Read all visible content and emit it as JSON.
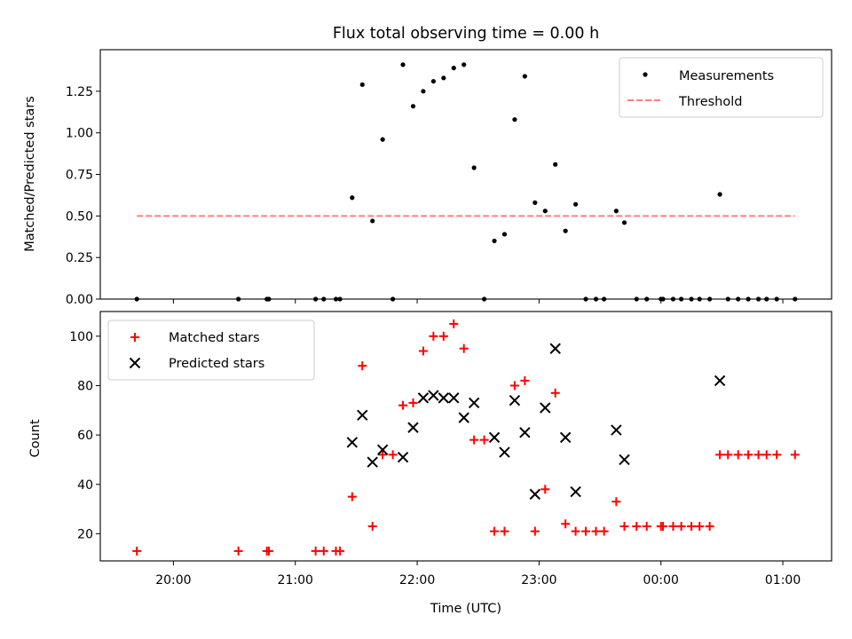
{
  "chart_data": [
    {
      "type": "scatter",
      "title": "Flux total observing time = 0.00 h",
      "xlabel": "",
      "ylabel": "Matched/Predicted stars",
      "ylim": [
        0,
        1.5
      ],
      "yticks": [
        "0.00",
        "0.25",
        "0.50",
        "0.75",
        "1.00",
        "1.25"
      ],
      "legend": "top-right",
      "threshold": {
        "name": "Threshold",
        "value": 0.5,
        "x_from": "19:42",
        "x_to": "01:06",
        "color": "#ff7f7f"
      },
      "series": [
        {
          "name": "Measurements",
          "color": "#000000",
          "points": [
            [
              "19:42",
              0.0
            ],
            [
              "20:32",
              0.0
            ],
            [
              "20:46",
              0.0
            ],
            [
              "20:47",
              0.0
            ],
            [
              "21:10",
              0.0
            ],
            [
              "21:14",
              0.0
            ],
            [
              "21:20",
              0.0
            ],
            [
              "21:22",
              0.0
            ],
            [
              "21:28",
              0.61
            ],
            [
              "21:33",
              1.29
            ],
            [
              "21:38",
              0.47
            ],
            [
              "21:43",
              0.96
            ],
            [
              "21:48",
              0.0
            ],
            [
              "21:53",
              1.41
            ],
            [
              "21:58",
              1.16
            ],
            [
              "22:03",
              1.25
            ],
            [
              "22:08",
              1.31
            ],
            [
              "22:13",
              1.33
            ],
            [
              "22:18",
              1.39
            ],
            [
              "22:23",
              1.41
            ],
            [
              "22:28",
              0.79
            ],
            [
              "22:33",
              0.0
            ],
            [
              "22:38",
              0.35
            ],
            [
              "22:43",
              0.39
            ],
            [
              "22:48",
              1.08
            ],
            [
              "22:53",
              1.34
            ],
            [
              "22:58",
              0.58
            ],
            [
              "23:03",
              0.53
            ],
            [
              "23:08",
              0.81
            ],
            [
              "23:13",
              0.41
            ],
            [
              "23:18",
              0.57
            ],
            [
              "23:23",
              0.0
            ],
            [
              "23:28",
              0.0
            ],
            [
              "23:32",
              0.0
            ],
            [
              "23:38",
              0.53
            ],
            [
              "23:42",
              0.46
            ],
            [
              "23:48",
              0.0
            ],
            [
              "23:53",
              0.0
            ],
            [
              "00:00",
              0.0
            ],
            [
              "00:01",
              0.0
            ],
            [
              "00:06",
              0.0
            ],
            [
              "00:10",
              0.0
            ],
            [
              "00:15",
              0.0
            ],
            [
              "00:19",
              0.0
            ],
            [
              "00:24",
              0.0
            ],
            [
              "00:29",
              0.63
            ],
            [
              "00:33",
              0.0
            ],
            [
              "00:38",
              0.0
            ],
            [
              "00:43",
              0.0
            ],
            [
              "00:48",
              0.0
            ],
            [
              "00:52",
              0.0
            ],
            [
              "00:57",
              0.0
            ],
            [
              "01:06",
              0.0
            ]
          ]
        }
      ]
    },
    {
      "type": "scatter",
      "title": "",
      "xlabel": "Time (UTC)",
      "ylabel": "Count",
      "ylim": [
        9,
        110
      ],
      "yticks": [
        "20",
        "40",
        "60",
        "80",
        "100"
      ],
      "xticks": [
        "20:00",
        "21:00",
        "22:00",
        "23:00",
        "00:00",
        "01:00"
      ],
      "legend": "top-left",
      "series": [
        {
          "name": "Matched stars",
          "color": "#ff0000",
          "marker": "plus",
          "points": [
            [
              "19:42",
              13
            ],
            [
              "20:32",
              13
            ],
            [
              "20:46",
              13
            ],
            [
              "20:47",
              13
            ],
            [
              "21:10",
              13
            ],
            [
              "21:14",
              13
            ],
            [
              "21:20",
              13
            ],
            [
              "21:22",
              13
            ],
            [
              "21:28",
              35
            ],
            [
              "21:33",
              88
            ],
            [
              "21:38",
              23
            ],
            [
              "21:43",
              52
            ],
            [
              "21:48",
              52
            ],
            [
              "21:53",
              72
            ],
            [
              "21:58",
              73
            ],
            [
              "22:03",
              94
            ],
            [
              "22:08",
              100
            ],
            [
              "22:13",
              100
            ],
            [
              "22:18",
              105
            ],
            [
              "22:23",
              95
            ],
            [
              "22:28",
              58
            ],
            [
              "22:33",
              58
            ],
            [
              "22:38",
              21
            ],
            [
              "22:43",
              21
            ],
            [
              "22:48",
              80
            ],
            [
              "22:53",
              82
            ],
            [
              "22:58",
              21
            ],
            [
              "23:03",
              38
            ],
            [
              "23:08",
              77
            ],
            [
              "23:13",
              24
            ],
            [
              "23:18",
              21
            ],
            [
              "23:23",
              21
            ],
            [
              "23:28",
              21
            ],
            [
              "23:32",
              21
            ],
            [
              "23:38",
              33
            ],
            [
              "23:42",
              23
            ],
            [
              "23:48",
              23
            ],
            [
              "23:53",
              23
            ],
            [
              "00:00",
              23
            ],
            [
              "00:01",
              23
            ],
            [
              "00:06",
              23
            ],
            [
              "00:10",
              23
            ],
            [
              "00:15",
              23
            ],
            [
              "00:19",
              23
            ],
            [
              "00:24",
              23
            ],
            [
              "00:29",
              52
            ],
            [
              "00:33",
              52
            ],
            [
              "00:38",
              52
            ],
            [
              "00:43",
              52
            ],
            [
              "00:48",
              52
            ],
            [
              "00:52",
              52
            ],
            [
              "00:57",
              52
            ],
            [
              "01:06",
              52
            ]
          ]
        },
        {
          "name": "Predicted stars",
          "color": "#000000",
          "marker": "x",
          "points": [
            [
              "21:28",
              57
            ],
            [
              "21:33",
              68
            ],
            [
              "21:38",
              49
            ],
            [
              "21:43",
              54
            ],
            [
              "21:53",
              51
            ],
            [
              "21:58",
              63
            ],
            [
              "22:03",
              75
            ],
            [
              "22:08",
              76
            ],
            [
              "22:13",
              75
            ],
            [
              "22:18",
              75
            ],
            [
              "22:23",
              67
            ],
            [
              "22:28",
              73
            ],
            [
              "22:38",
              59
            ],
            [
              "22:43",
              53
            ],
            [
              "22:48",
              74
            ],
            [
              "22:53",
              61
            ],
            [
              "22:58",
              36
            ],
            [
              "23:03",
              71
            ],
            [
              "23:08",
              95
            ],
            [
              "23:13",
              59
            ],
            [
              "23:18",
              37
            ],
            [
              "23:38",
              62
            ],
            [
              "23:42",
              50
            ],
            [
              "00:29",
              82
            ]
          ]
        }
      ]
    }
  ]
}
